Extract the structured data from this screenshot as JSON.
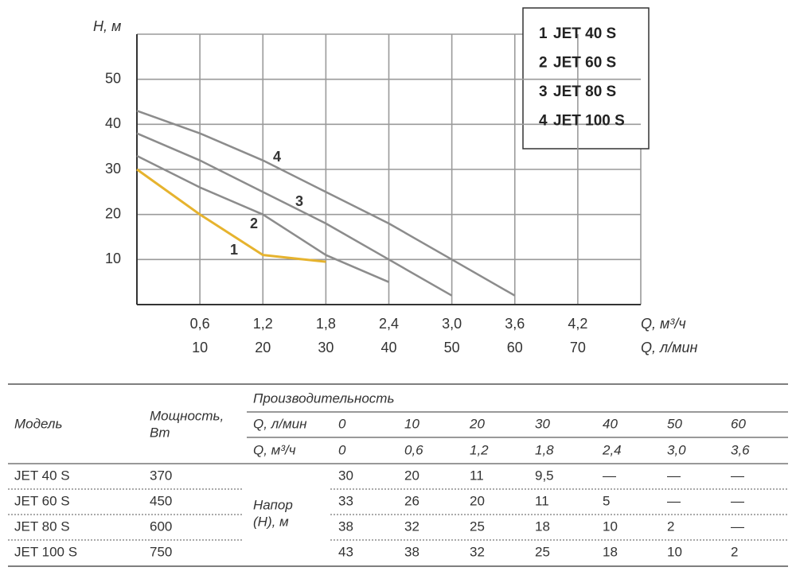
{
  "chart_data": {
    "type": "line",
    "y_label": "H, м",
    "x_label": "Q, м³/ч",
    "x2_label": "Q, л/мин",
    "x": [
      0,
      0.6,
      1.2,
      1.8,
      2.4,
      3.0,
      3.6
    ],
    "xlim": [
      0,
      4.8
    ],
    "ylim": [
      0,
      60
    ],
    "xticks": [
      {
        "value": 0.6,
        "label": "0,6"
      },
      {
        "value": 1.2,
        "label": "1,2"
      },
      {
        "value": 1.8,
        "label": "1,8"
      },
      {
        "value": 2.4,
        "label": "2,4"
      },
      {
        "value": 3.0,
        "label": "3,0"
      },
      {
        "value": 3.6,
        "label": "3,6"
      },
      {
        "value": 4.2,
        "label": "4,2"
      }
    ],
    "x2ticks": [
      {
        "value": 0.6,
        "label": "10"
      },
      {
        "value": 1.2,
        "label": "20"
      },
      {
        "value": 1.8,
        "label": "30"
      },
      {
        "value": 2.4,
        "label": "40"
      },
      {
        "value": 3.0,
        "label": "50"
      },
      {
        "value": 3.6,
        "label": "60"
      },
      {
        "value": 4.2,
        "label": "70"
      }
    ],
    "yticks": [
      10,
      20,
      30,
      40,
      50
    ],
    "grid": true,
    "legend": "upper right",
    "series": [
      {
        "label": "1",
        "name": "JET 40 S",
        "color": "#e6b32e",
        "values": [
          30,
          20,
          11,
          9.5,
          null,
          null,
          null
        ]
      },
      {
        "label": "2",
        "name": "JET 60 S",
        "color": "#8c8c8c",
        "values": [
          33,
          26,
          20,
          11,
          5,
          null,
          null
        ]
      },
      {
        "label": "3",
        "name": "JET 80 S",
        "color": "#8c8c8c",
        "values": [
          38,
          32,
          25,
          18,
          10,
          2,
          null
        ]
      },
      {
        "label": "4",
        "name": "JET 100 S",
        "color": "#8c8c8c",
        "values": [
          43,
          38,
          32,
          25,
          18,
          10,
          2
        ]
      }
    ]
  },
  "table": {
    "model_header": "Модель",
    "power_header": [
      "Мощность,",
      "Вт"
    ],
    "performance_header": "Производительность",
    "flow_lpm_label": "Q, л/мин",
    "flow_lpm": [
      "0",
      "10",
      "20",
      "30",
      "40",
      "50",
      "60"
    ],
    "flow_m3h_label": "Q, м³/ч",
    "flow_m3h": [
      "0",
      "0,6",
      "1,2",
      "1,8",
      "2,4",
      "3,0",
      "3,6"
    ],
    "head_label": [
      "Напор",
      "(Н), м"
    ],
    "rows": [
      {
        "model": "JET 40 S",
        "power": "370",
        "head": [
          "30",
          "20",
          "11",
          "9,5",
          "—",
          "—",
          "—"
        ]
      },
      {
        "model": "JET 60 S",
        "power": "450",
        "head": [
          "33",
          "26",
          "20",
          "11",
          "5",
          "—",
          "—"
        ]
      },
      {
        "model": "JET 80 S",
        "power": "600",
        "head": [
          "38",
          "32",
          "25",
          "18",
          "10",
          "2",
          "—"
        ]
      },
      {
        "model": "JET 100 S",
        "power": "750",
        "head": [
          "43",
          "38",
          "32",
          "25",
          "18",
          "10",
          "2"
        ]
      }
    ]
  }
}
